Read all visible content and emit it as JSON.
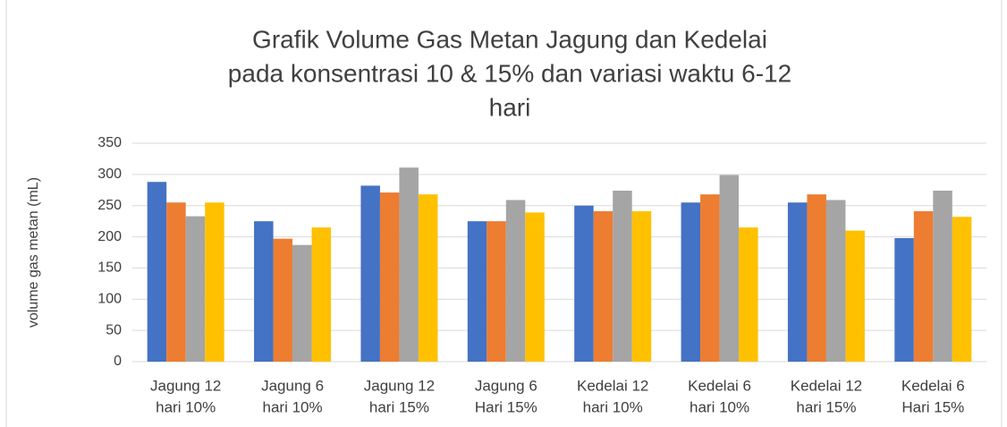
{
  "chart_data": {
    "type": "bar",
    "title": [
      "Grafik Volume Gas Metan Jagung dan Kedelai",
      "pada konsentrasi  10 & 15% dan variasi waktu 6-12",
      "hari"
    ],
    "y_label": "volume gas metan (mL)",
    "categories": [
      [
        "Jagung 12",
        "hari 10%"
      ],
      [
        "Jagung 6",
        "hari 10%"
      ],
      [
        "Jagung 12",
        "hari 15%"
      ],
      [
        "Jagung 6",
        "Hari 15%"
      ],
      [
        "Kedelai 12",
        "hari 10%"
      ],
      [
        "Kedelai 6",
        "hari 10%"
      ],
      [
        "Kedelai 12",
        "hari 15%"
      ],
      [
        "Kedelai 6",
        "Hari 15%"
      ]
    ],
    "series": [
      {
        "color": "#4472c4",
        "values": [
          288,
          225,
          282,
          225,
          250,
          255,
          255,
          198
        ]
      },
      {
        "color": "#ed7d31",
        "values": [
          255,
          197,
          271,
          225,
          241,
          268,
          268,
          241
        ]
      },
      {
        "color": "#a5a5a5",
        "values": [
          233,
          187,
          311,
          259,
          274,
          299,
          259,
          274
        ]
      },
      {
        "color": "#ffc000",
        "values": [
          255,
          215,
          268,
          239,
          241,
          215,
          210,
          232
        ]
      }
    ],
    "ylim": [
      0,
      350
    ],
    "yticks": [
      0,
      50,
      100,
      150,
      200,
      250,
      300,
      350
    ],
    "grid": true
  }
}
